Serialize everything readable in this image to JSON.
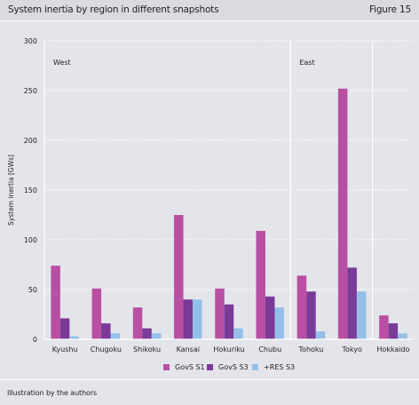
{
  "header": {
    "title": "System inertia by region in different snapshots",
    "figure": "Figure 15"
  },
  "footer": {
    "source": "Illustration by the authors"
  },
  "chart_data": {
    "type": "bar",
    "title": "System inertia by region in different snapshots",
    "xlabel": "",
    "ylabel": "System inertia [GWs]",
    "ylim": [
      0,
      300
    ],
    "yticks": [
      0,
      50,
      100,
      150,
      200,
      250,
      300
    ],
    "grid": true,
    "legend_position": "bottom",
    "categories": [
      "Kyushu",
      "Chugoku",
      "Shikoku",
      "Kansai",
      "Hokuriku",
      "Chubu",
      "Tohoku",
      "Tokyo",
      "Hokkaido"
    ],
    "series": [
      {
        "name": "GovS S1",
        "color": "#b84fa3",
        "values": [
          74,
          51,
          32,
          125,
          51,
          109,
          64,
          252,
          24
        ]
      },
      {
        "name": "GovS S3",
        "color": "#7a3a97",
        "values": [
          21,
          16,
          11,
          40,
          35,
          43,
          48,
          72,
          16
        ]
      },
      {
        "name": "+RES S3",
        "color": "#94bfe8",
        "values": [
          3,
          6,
          6,
          40,
          11,
          32,
          8,
          48,
          6
        ]
      }
    ],
    "regions": [
      {
        "label": "West",
        "from": 0,
        "to": 5
      },
      {
        "label": "East",
        "from": 6,
        "to": 7
      }
    ]
  }
}
